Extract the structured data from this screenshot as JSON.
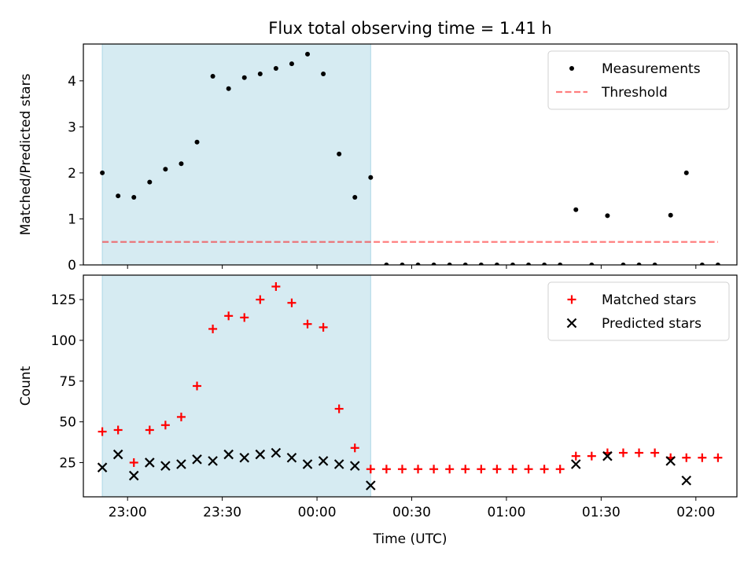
{
  "chart_data": [
    {
      "type": "scatter",
      "title": "Flux total observing time = 1.41 h",
      "xlabel": "",
      "ylabel": "Matched/Predicted stars",
      "ylim": [
        0,
        4.8
      ],
      "yticks": [
        0,
        1,
        2,
        3,
        4
      ],
      "xlim": [
        "22:46",
        "02:13"
      ],
      "xticks": [
        "23:00",
        "23:30",
        "00:00",
        "00:30",
        "01:00",
        "01:30",
        "02:00"
      ],
      "xtick_labels_visible": false,
      "shaded_region": {
        "x_start": "22:52",
        "x_end": "00:17",
        "color": "#add8e6"
      },
      "threshold": {
        "name": "Threshold",
        "value": 0.5,
        "x_start": "22:52",
        "x_end": "02:07",
        "color": "#ff0000"
      },
      "series": [
        {
          "name": "Measurements",
          "marker": "dot",
          "color": "#000000",
          "x": [
            "22:52",
            "22:57",
            "23:02",
            "23:07",
            "23:12",
            "23:17",
            "23:22",
            "23:27",
            "23:32",
            "23:37",
            "23:42",
            "23:47",
            "23:52",
            "23:57",
            "00:02",
            "00:07",
            "00:12",
            "00:17",
            "00:22",
            "00:27",
            "00:32",
            "00:37",
            "00:42",
            "00:47",
            "00:52",
            "00:57",
            "01:02",
            "01:07",
            "01:12",
            "01:17",
            "01:22",
            "01:27",
            "01:32",
            "01:37",
            "01:42",
            "01:47",
            "01:52",
            "01:57",
            "02:02",
            "02:07"
          ],
          "y": [
            2.0,
            1.5,
            1.47,
            1.8,
            2.08,
            2.2,
            2.67,
            4.1,
            3.83,
            4.07,
            4.15,
            4.27,
            4.37,
            4.58,
            4.15,
            2.41,
            1.47,
            1.9,
            0,
            0,
            0,
            0,
            0,
            0,
            0,
            0,
            0,
            0,
            0,
            0,
            1.2,
            0,
            1.07,
            0,
            0,
            0,
            1.08,
            2.0,
            0,
            0
          ]
        }
      ],
      "legend": {
        "position": "upper-right",
        "entries": [
          "Measurements",
          "Threshold"
        ]
      }
    },
    {
      "type": "scatter",
      "title": "",
      "xlabel": "Time (UTC)",
      "ylabel": "Count",
      "ylim": [
        4,
        140
      ],
      "yticks": [
        25,
        50,
        75,
        100,
        125
      ],
      "xlim": [
        "22:46",
        "02:13"
      ],
      "xticks": [
        "23:00",
        "23:30",
        "00:00",
        "00:30",
        "01:00",
        "01:30",
        "02:00"
      ],
      "shaded_region": {
        "x_start": "22:52",
        "x_end": "00:17",
        "color": "#add8e6"
      },
      "series": [
        {
          "name": "Matched stars",
          "marker": "plus",
          "color": "#ff0000",
          "x": [
            "22:52",
            "22:57",
            "23:02",
            "23:07",
            "23:12",
            "23:17",
            "23:22",
            "23:27",
            "23:32",
            "23:37",
            "23:42",
            "23:47",
            "23:52",
            "23:57",
            "00:02",
            "00:07",
            "00:12",
            "00:17",
            "00:22",
            "00:27",
            "00:32",
            "00:37",
            "00:42",
            "00:47",
            "00:52",
            "00:57",
            "01:02",
            "01:07",
            "01:12",
            "01:17",
            "01:22",
            "01:27",
            "01:32",
            "01:37",
            "01:42",
            "01:47",
            "01:52",
            "01:57",
            "02:02",
            "02:07"
          ],
          "y": [
            44,
            45,
            25,
            45,
            48,
            53,
            72,
            107,
            115,
            114,
            125,
            133,
            123,
            110,
            108,
            58,
            34,
            21,
            21,
            21,
            21,
            21,
            21,
            21,
            21,
            21,
            21,
            21,
            21,
            21,
            29,
            29,
            31,
            31,
            31,
            31,
            28,
            28,
            28,
            28
          ]
        },
        {
          "name": "Predicted stars",
          "marker": "x",
          "color": "#000000",
          "x": [
            "22:52",
            "22:57",
            "23:02",
            "23:07",
            "23:12",
            "23:17",
            "23:22",
            "23:27",
            "23:32",
            "23:37",
            "23:42",
            "23:47",
            "23:52",
            "23:57",
            "00:02",
            "00:07",
            "00:12",
            "00:17",
            "01:22",
            "01:32",
            "01:52",
            "01:57"
          ],
          "y": [
            22,
            30,
            17,
            25,
            23,
            24,
            27,
            26,
            30,
            28,
            30,
            31,
            28,
            24,
            26,
            24,
            23,
            11,
            24,
            29,
            26,
            14
          ]
        }
      ],
      "legend": {
        "position": "upper-right",
        "entries": [
          "Matched stars",
          "Predicted stars"
        ]
      }
    }
  ]
}
